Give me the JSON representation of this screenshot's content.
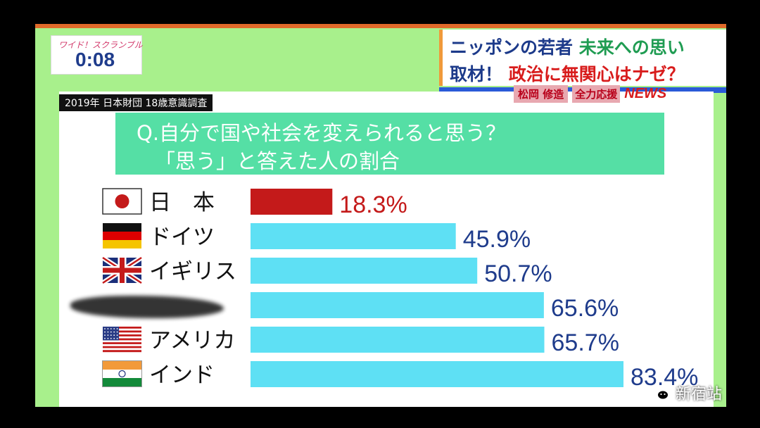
{
  "program": {
    "show_name": "ワイド！スクランブル",
    "time": "0:08"
  },
  "headline": {
    "line1_a": "ニッポンの若者",
    "line1_b": "未来への思い",
    "line2_a": "取材！",
    "line2_b": "政治に無関心はナゼ？"
  },
  "ticker": {
    "name": "松岡 修造",
    "tag": "全力応援",
    "brand": "NEWS"
  },
  "source_label": "2019年 日本財団 18歳意識調査",
  "question": {
    "line1": "Q.自分で国や社会を変えられると思う？",
    "line2": "「思う」と答えた人の割合"
  },
  "colors": {
    "highlight_bar": "#c41a1a",
    "default_bar": "#5ee0f4",
    "highlight_label": "#c41a1a",
    "default_label": "#1f3c8c",
    "screen_bg": "#a8f08c",
    "question_bg": "#55dfa5"
  },
  "chart_data": {
    "type": "bar",
    "orientation": "horizontal",
    "title": "Q.自分で国や社会を変えられると思う？ 「思う」と答えた人の割合",
    "categories": [
      "日　本",
      "ドイツ",
      "イギリス",
      "",
      "アメリカ",
      "インド"
    ],
    "flags": [
      "japan-flag-icon",
      "germany-flag-icon",
      "uk-flag-icon",
      "",
      "usa-flag-icon",
      "india-flag-icon"
    ],
    "values": [
      18.3,
      45.9,
      50.7,
      65.6,
      65.7,
      83.4
    ],
    "value_labels": [
      "18.3%",
      "45.9%",
      "50.7%",
      "65.6%",
      "65.7%",
      "83.4%"
    ],
    "highlight_index": 0,
    "xlim": [
      0,
      100
    ]
  },
  "watermark": {
    "text": "新宿站",
    "icon": "wechat-icon"
  }
}
